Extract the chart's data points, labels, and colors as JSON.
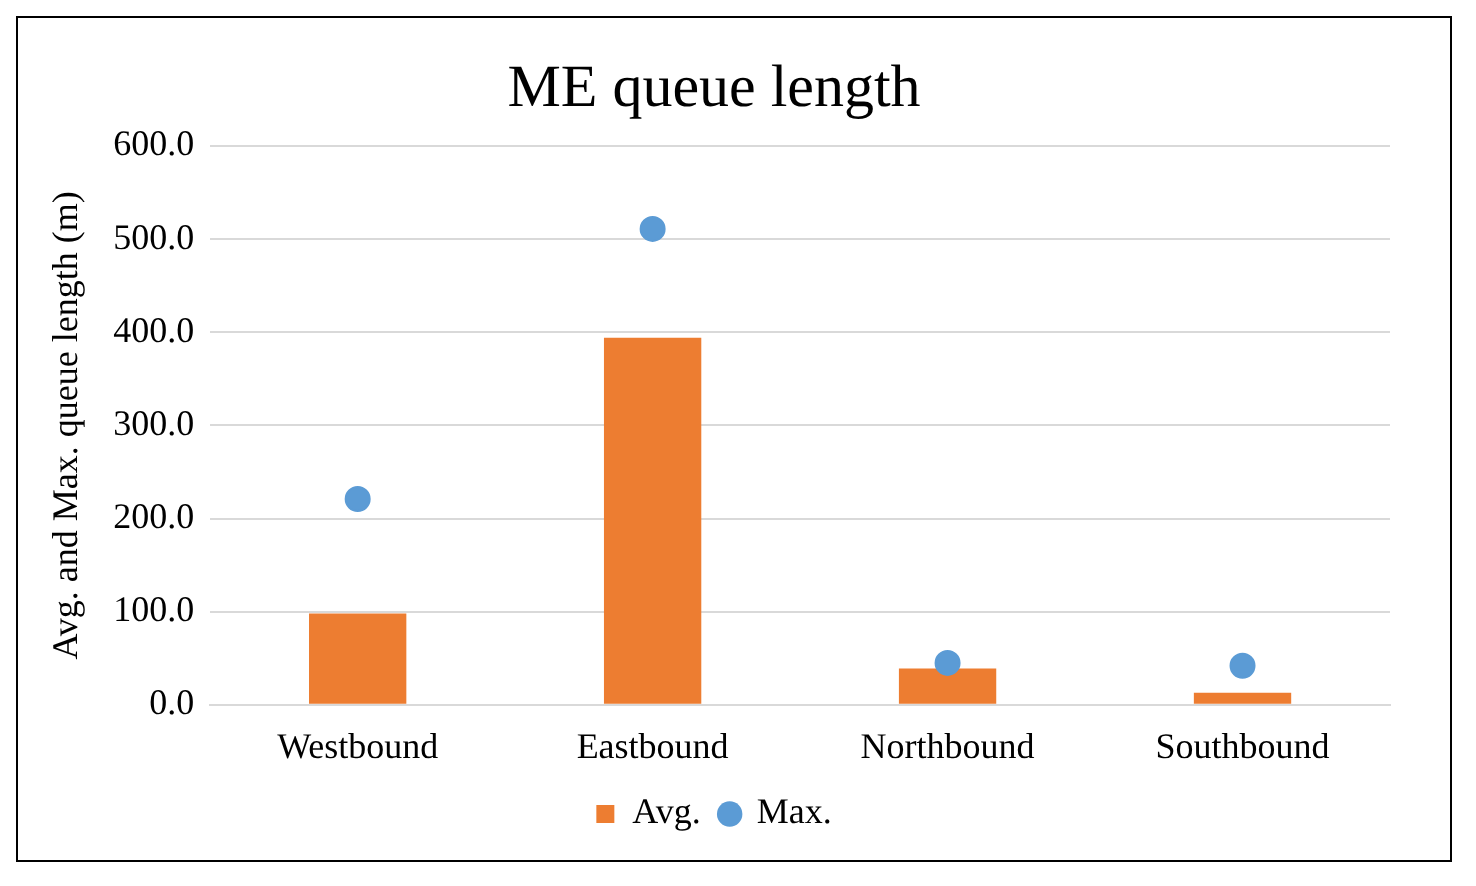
{
  "chart_data": {
    "type": "bar",
    "title": "ME queue length",
    "ylabel": "Avg. and Max. queue length (m)",
    "categories": [
      "Westbound",
      "Eastbound",
      "Northbound",
      "Southbound"
    ],
    "series": [
      {
        "name": "Avg.",
        "color": "#ed7d31",
        "values": [
          98,
          394,
          39,
          13
        ]
      },
      {
        "name": "Max.",
        "type": "scatter",
        "color": "#5b9bd5",
        "values": [
          221,
          511,
          45,
          42
        ]
      }
    ],
    "ylim": [
      0,
      600
    ],
    "yticks": [
      {
        "value": 0,
        "label": "0.0"
      },
      {
        "value": 100,
        "label": "100.0"
      },
      {
        "value": 200,
        "label": "200.0"
      },
      {
        "value": 300,
        "label": "300.0"
      },
      {
        "value": 400,
        "label": "400.0"
      },
      {
        "value": 500,
        "label": "500.0"
      },
      {
        "value": 600,
        "label": "600.0"
      }
    ],
    "grid": "y",
    "legend": "bottom",
    "marker": "circle"
  }
}
